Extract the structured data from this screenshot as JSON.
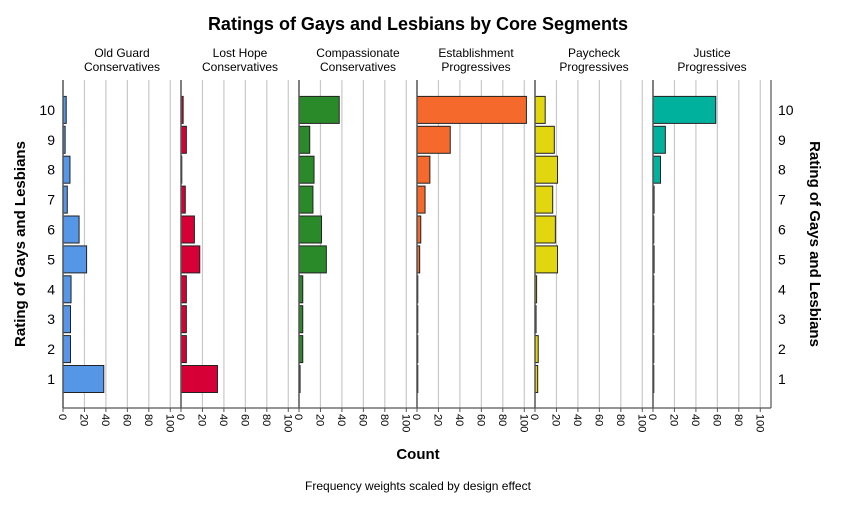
{
  "chart_data": {
    "type": "bar",
    "orientation": "horizontal",
    "title": "Ratings of Gays and Lesbians by Core Segments",
    "xlabel": "Count",
    "ylabel": "Rating of Gays and Lesbians",
    "footnote": "Frequency weights scaled by design effect",
    "categories": [
      "1",
      "2",
      "3",
      "4",
      "5",
      "6",
      "7",
      "8",
      "9",
      "10"
    ],
    "xticks": [
      0,
      20,
      40,
      60,
      80,
      100
    ],
    "xlim": [
      0,
      110
    ],
    "grid": true,
    "panels": [
      {
        "name": [
          "Old Guard",
          "Conservatives"
        ],
        "color": "#5596e6",
        "values": [
          38,
          7,
          7,
          7.5,
          22,
          15,
          4,
          6.5,
          2,
          3
        ]
      },
      {
        "name": [
          "Lost Hope",
          "Conservatives"
        ],
        "color": "#d60036",
        "values": [
          34,
          5,
          5,
          5,
          17.5,
          12.5,
          4,
          0.5,
          5,
          2
        ]
      },
      {
        "name": [
          "Compassionate",
          "Conservatives"
        ],
        "color": "#2a8a2a",
        "values": [
          1,
          3.5,
          3.5,
          3.5,
          25.5,
          21,
          13,
          14,
          10,
          37.5
        ]
      },
      {
        "name": [
          "Establishment",
          "Progressives"
        ],
        "color": "#f56a2c",
        "values": [
          0.3,
          0.3,
          0.3,
          0.5,
          2.5,
          3.5,
          7.5,
          12,
          31,
          102
        ]
      },
      {
        "name": [
          "Paycheck",
          "Progressives"
        ],
        "color": "#e2d60e",
        "values": [
          2.5,
          3,
          1,
          1.5,
          21,
          19,
          16.5,
          21,
          18,
          9.5
        ]
      },
      {
        "name": [
          "Justice",
          "Progressives"
        ],
        "color": "#00b29e",
        "values": [
          0.3,
          0.3,
          0.3,
          0.3,
          1,
          0.3,
          1,
          7,
          11.5,
          58.5
        ]
      }
    ]
  }
}
